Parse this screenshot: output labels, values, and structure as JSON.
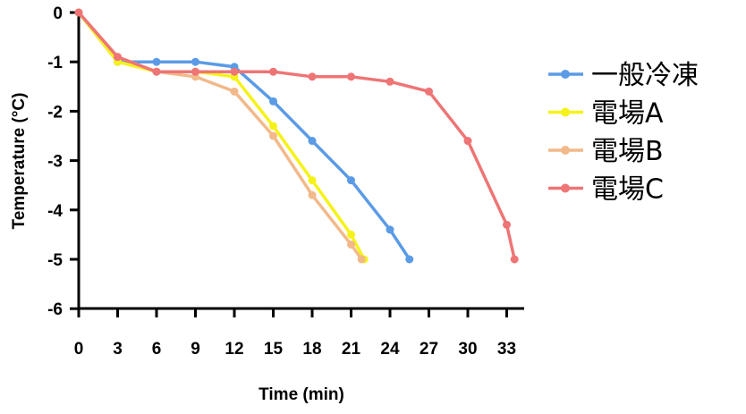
{
  "chart_data": {
    "type": "line",
    "title": "",
    "xlabel": "Time (min)",
    "ylabel": "Temperature (°C)",
    "xlim": [
      0,
      33
    ],
    "ylim": [
      -6,
      0
    ],
    "xticks": [
      0,
      3,
      6,
      9,
      12,
      15,
      18,
      21,
      24,
      27,
      30,
      33
    ],
    "yticks": [
      0,
      -1,
      -2,
      -3,
      -4,
      -5,
      -6
    ],
    "legend_position": "right",
    "series": [
      {
        "name": "一般冷凍",
        "color": "#5b9be6",
        "x": [
          0,
          3,
          6,
          9,
          12,
          15,
          18,
          21,
          24,
          25.5
        ],
        "y": [
          0,
          -1.0,
          -1.0,
          -1.0,
          -1.1,
          -1.8,
          -2.6,
          -3.4,
          -4.4,
          -5.0
        ]
      },
      {
        "name": "電場A",
        "color": "#f5f21a",
        "x": [
          0,
          3,
          6,
          9,
          12,
          15,
          18,
          21,
          22
        ],
        "y": [
          0,
          -1.0,
          -1.2,
          -1.2,
          -1.3,
          -2.3,
          -3.4,
          -4.5,
          -5.0
        ]
      },
      {
        "name": "電場B",
        "color": "#f2b98a",
        "x": [
          0,
          3,
          6,
          9,
          12,
          15,
          18,
          21,
          21.8
        ],
        "y": [
          0,
          -0.9,
          -1.2,
          -1.3,
          -1.6,
          -2.5,
          -3.7,
          -4.7,
          -5.0
        ]
      },
      {
        "name": "電場C",
        "color": "#ee7576",
        "x": [
          0,
          3,
          6,
          9,
          12,
          15,
          18,
          21,
          24,
          27,
          30,
          33,
          33.6
        ],
        "y": [
          0,
          -0.9,
          -1.2,
          -1.2,
          -1.2,
          -1.2,
          -1.3,
          -1.3,
          -1.4,
          -1.6,
          -2.6,
          -4.3,
          -5.0
        ]
      }
    ]
  }
}
